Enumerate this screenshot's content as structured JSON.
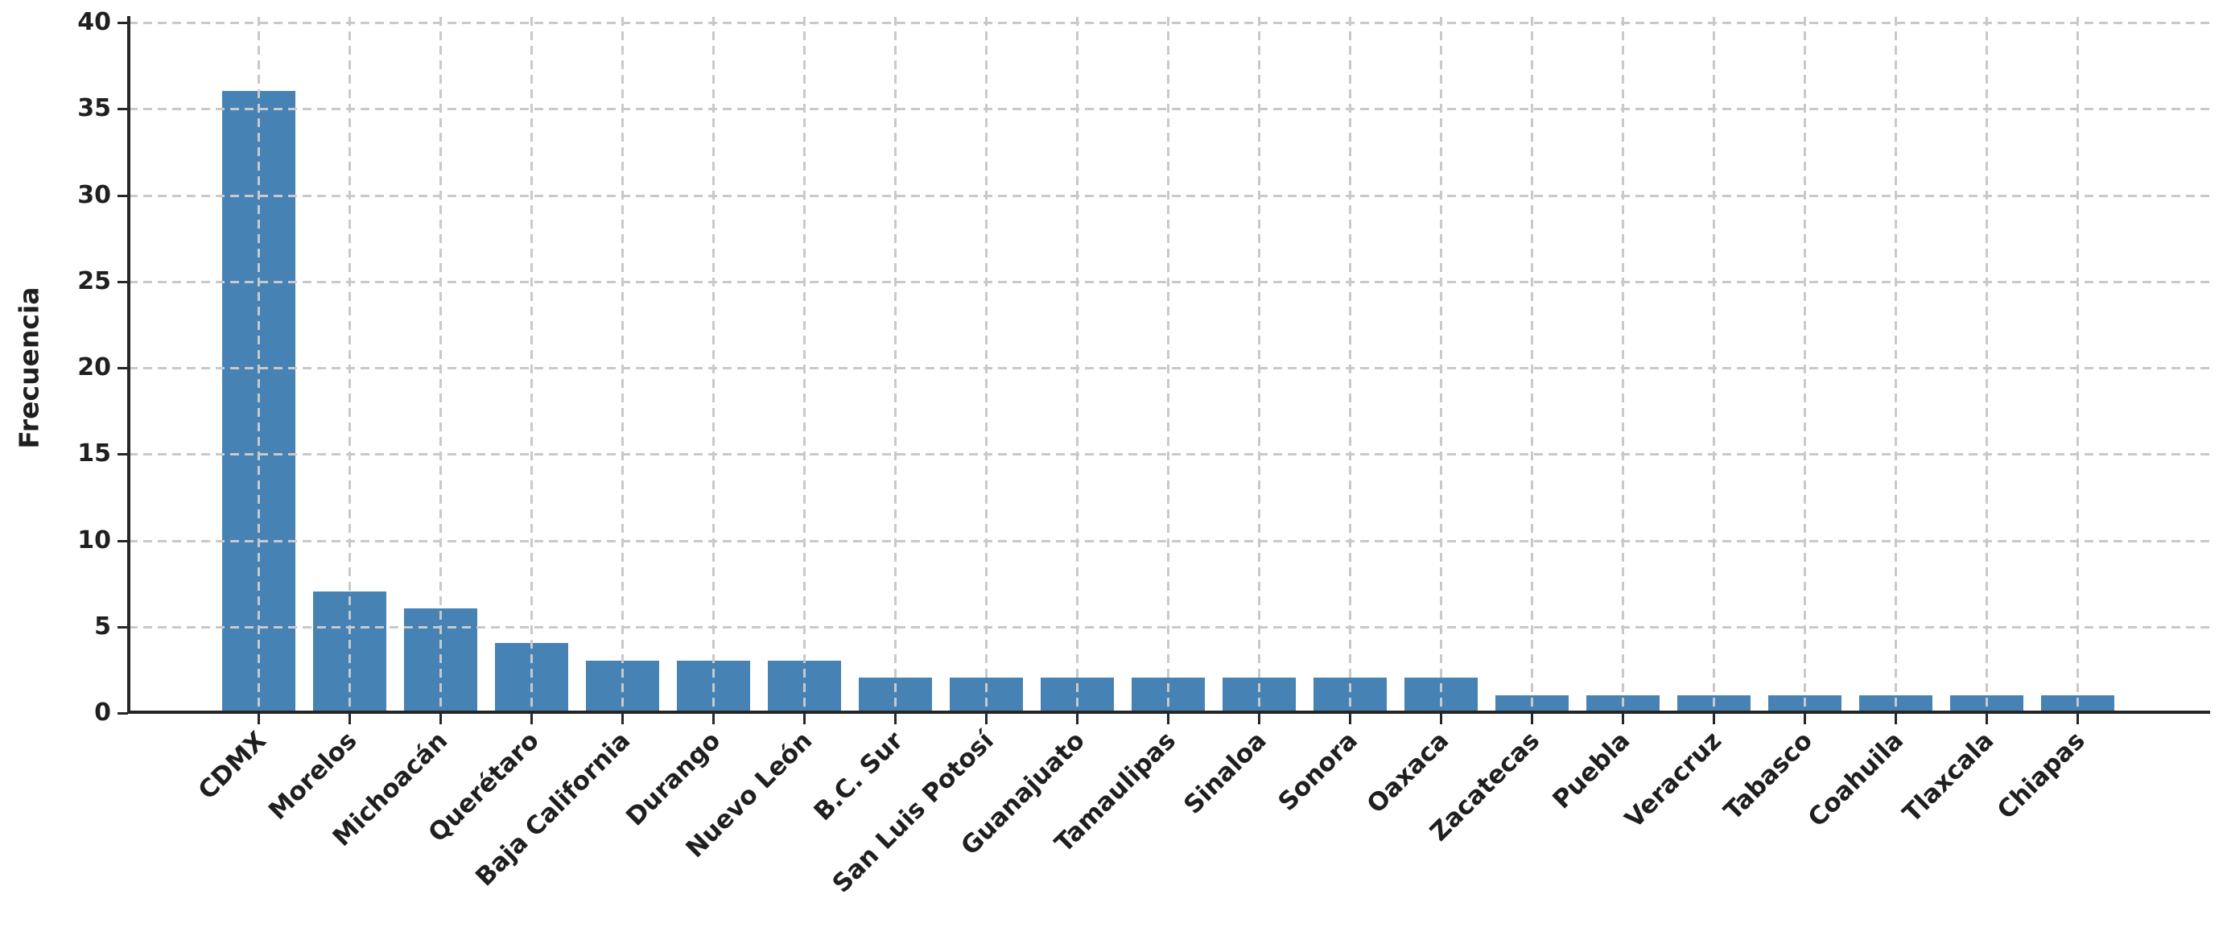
{
  "chart_data": {
    "type": "bar",
    "title": "",
    "xlabel": "",
    "ylabel": "Frecuencia",
    "categories": [
      "CDMX",
      "Morelos",
      "Michoacán",
      "Querétaro",
      "Baja California",
      "Durango",
      "Nuevo León",
      "B.C. Sur",
      "San Luis Potosí",
      "Guanajuato",
      "Tamaulipas",
      "Sinaloa",
      "Sonora",
      "Oaxaca",
      "Zacatecas",
      "Puebla",
      "Veracruz",
      "Tabasco",
      "Coahuila",
      "Tlaxcala",
      "Chiapas"
    ],
    "values": [
      36,
      7,
      6,
      4,
      3,
      3,
      3,
      2,
      2,
      2,
      2,
      2,
      2,
      2,
      1,
      1,
      1,
      1,
      1,
      1,
      1
    ],
    "yticks": [
      0,
      5,
      10,
      15,
      20,
      25,
      30,
      35,
      40
    ],
    "ylim": [
      0,
      40
    ],
    "grid": "dashed, horizontal and vertical, drawn above bars",
    "legend": "none",
    "colors": {
      "bar": "#4682b4",
      "grid": "#c9c9c9",
      "axis": "#262626",
      "text": "#1f1f1f",
      "background": "#ffffff"
    }
  }
}
